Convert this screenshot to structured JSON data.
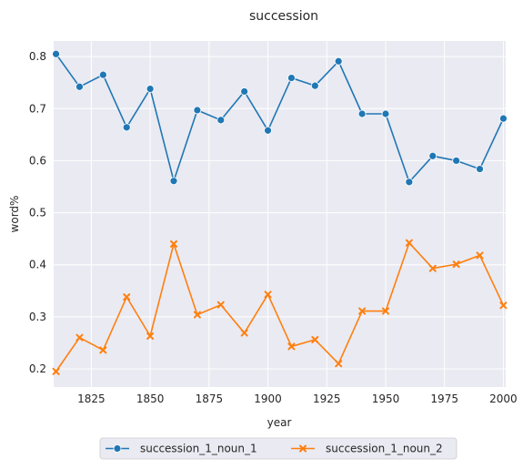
{
  "chart_data": {
    "type": "line",
    "title": "succession",
    "xlabel": "year",
    "ylabel": "word%",
    "xlim": [
      1809,
      2001
    ],
    "ylim": [
      0.165,
      0.83
    ],
    "xticks": [
      1825,
      1850,
      1875,
      1900,
      1925,
      1950,
      1975,
      2000
    ],
    "yticks": [
      0.2,
      0.3,
      0.4,
      0.5,
      0.6,
      0.7,
      0.8
    ],
    "grid": true,
    "legend_position": "bottom-center",
    "x": [
      1810,
      1820,
      1830,
      1840,
      1850,
      1860,
      1870,
      1880,
      1890,
      1900,
      1910,
      1920,
      1930,
      1940,
      1950,
      1960,
      1970,
      1980,
      1990,
      2000
    ],
    "series": [
      {
        "name": "succession_1_noun_1",
        "color": "#1f77b4",
        "marker": "circle",
        "values": [
          0.805,
          0.742,
          0.765,
          0.664,
          0.738,
          0.561,
          0.697,
          0.678,
          0.733,
          0.658,
          0.759,
          0.744,
          0.791,
          0.69,
          0.69,
          0.559,
          0.609,
          0.6,
          0.584,
          0.681
        ]
      },
      {
        "name": "succession_1_noun_2",
        "color": "#ff7f0e",
        "marker": "x",
        "values": [
          0.195,
          0.26,
          0.236,
          0.338,
          0.263,
          0.44,
          0.304,
          0.323,
          0.269,
          0.343,
          0.243,
          0.256,
          0.21,
          0.311,
          0.311,
          0.442,
          0.393,
          0.401,
          0.418,
          0.322
        ]
      }
    ]
  }
}
